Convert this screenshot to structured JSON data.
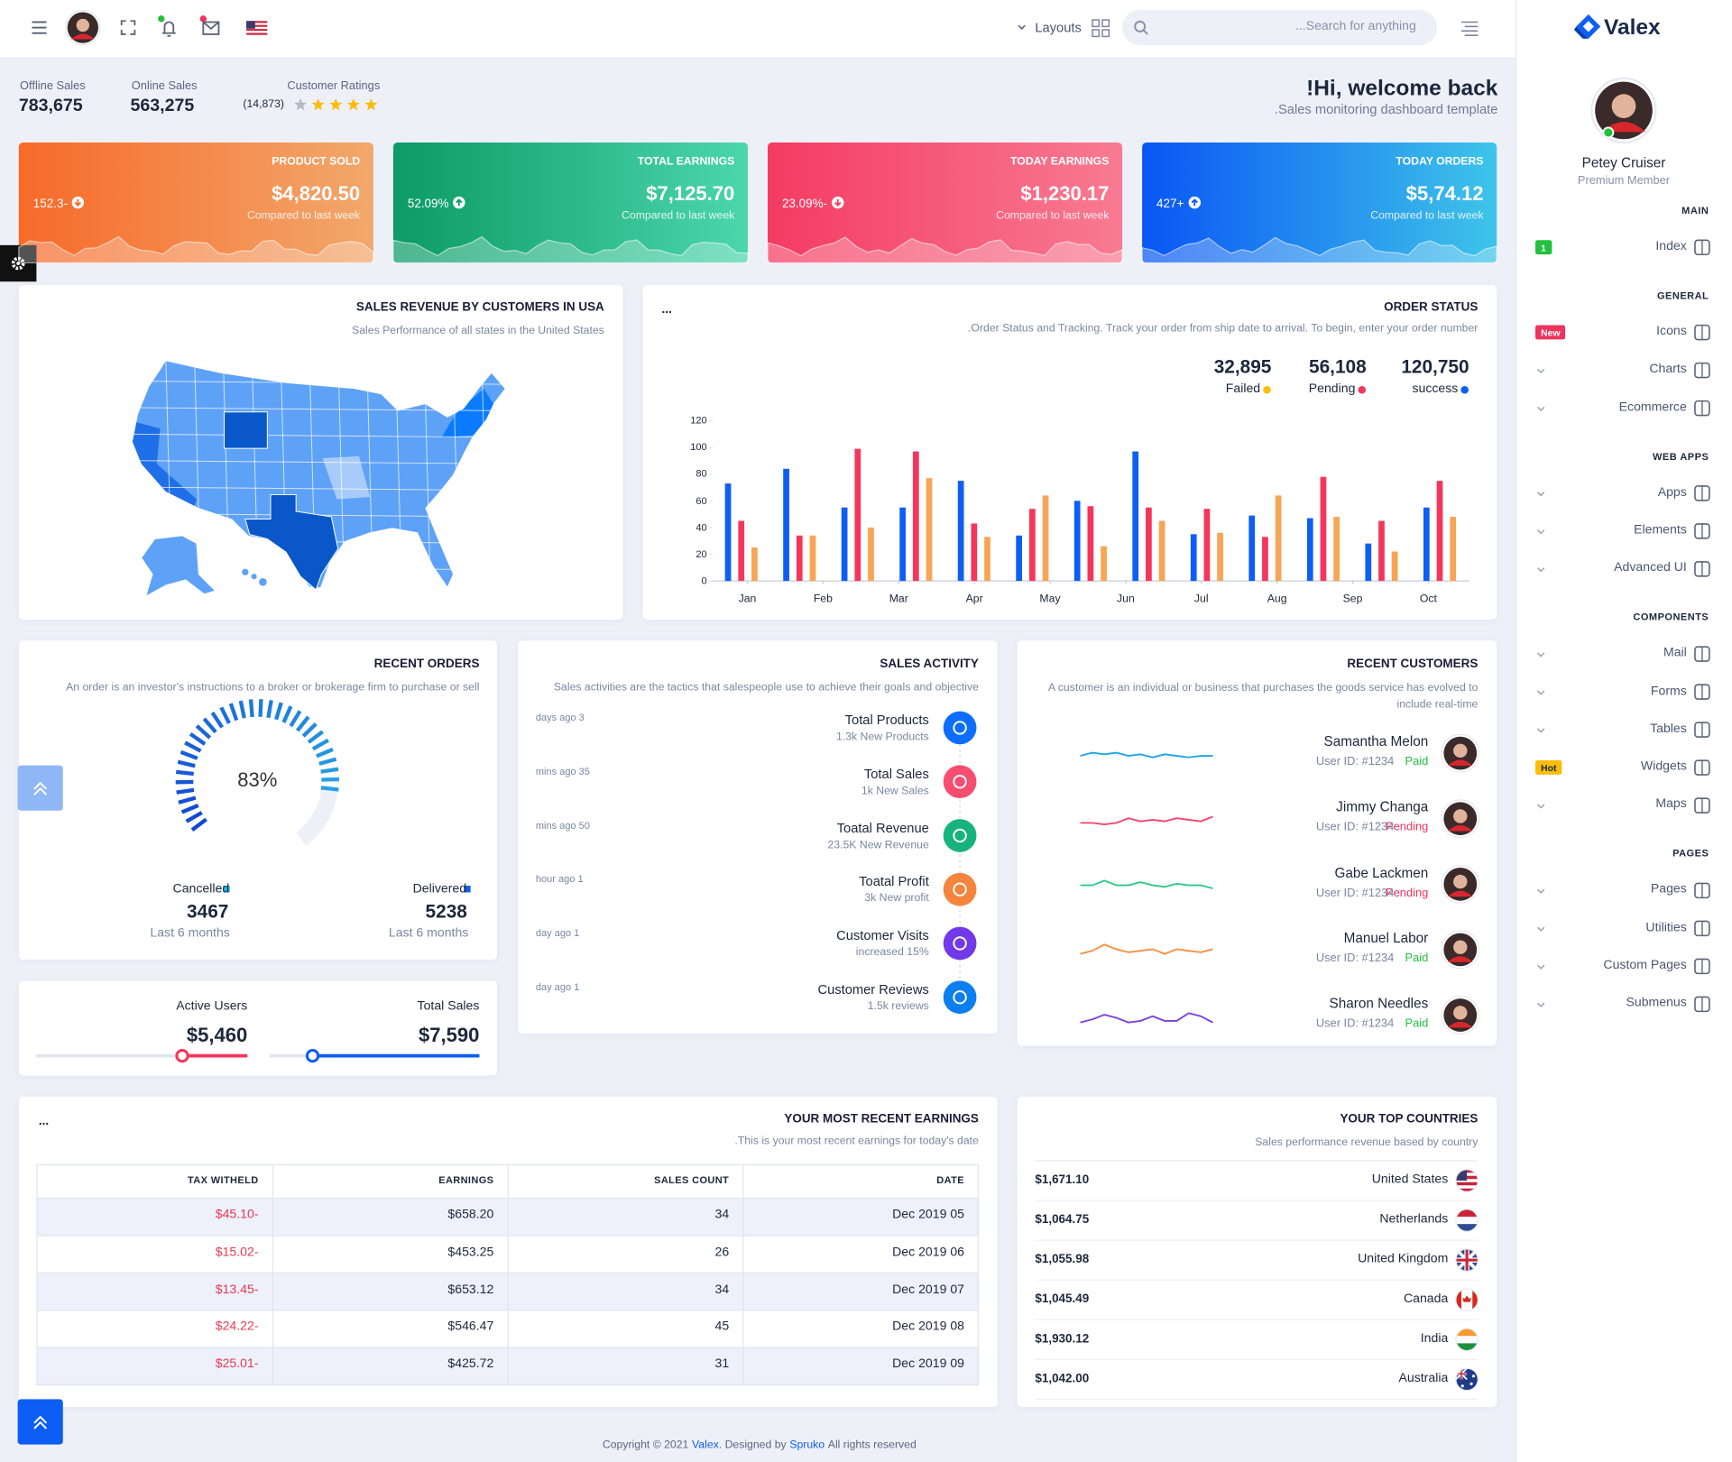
{
  "header": {
    "layouts": "Layouts",
    "search_placeholder": "...Search for anything"
  },
  "stats": [
    {
      "label": "Offline Sales",
      "value": "783,675"
    },
    {
      "label": "Online Sales",
      "value": "563,275"
    }
  ],
  "ratings": {
    "label": "Customer Ratings",
    "count": "(14,873)",
    "stars": 4,
    "max_stars": 5
  },
  "welcome": {
    "title": "!Hi, welcome back",
    "subtitle": ".Sales monitoring dashboard template"
  },
  "cards": [
    {
      "title": "PRODUCT SOLD",
      "value": "$4,820.50",
      "note": "Compared to last week",
      "change": "152.3-",
      "trend": "down",
      "colors": [
        "#f76a2a",
        "#f2a86c"
      ]
    },
    {
      "title": "TOTAL EARNINGS",
      "value": "$7,125.70",
      "note": "Compared to last week",
      "change": "52.09%",
      "trend": "up",
      "colors": [
        "#0b9a68",
        "#4cd7aa"
      ]
    },
    {
      "title": "TODAY EARNINGS",
      "value": "$1,230.17",
      "note": "Compared to last week",
      "change": "23.09%-",
      "trend": "down",
      "colors": [
        "#f43b62",
        "#f87b92"
      ]
    },
    {
      "title": "TODAY ORDERS",
      "value": "$5,74.12",
      "note": "Compared to last week",
      "change": "427+",
      "trend": "up",
      "colors": [
        "#0a56f4",
        "#3ec5e9"
      ]
    }
  ],
  "map": {
    "title": "SALES REVENUE BY CUSTOMERS IN USA",
    "subtitle": "Sales Performance of all states in the United States"
  },
  "chart_data": {
    "type": "bar",
    "menu": "...",
    "title": "ORDER STATUS",
    "subtitle": ".Order Status and Tracking. Track your order from ship date to arrival. To begin, enter your order number",
    "x": [
      0,
      1,
      2,
      3,
      4,
      5,
      6,
      7,
      8,
      9,
      10,
      11,
      12
    ],
    "xlim": [
      -0.5,
      12.5
    ],
    "xticks": [
      {
        "value": 0.1,
        "label": "Jan"
      },
      {
        "value": 1.4,
        "label": "Feb"
      },
      {
        "value": 2.7,
        "label": "Mar"
      },
      {
        "value": 4.0,
        "label": "Apr"
      },
      {
        "value": 5.3,
        "label": "May"
      },
      {
        "value": 6.6,
        "label": "Jun"
      },
      {
        "value": 7.9,
        "label": "Jul"
      },
      {
        "value": 9.2,
        "label": "Aug"
      },
      {
        "value": 10.5,
        "label": "Sep"
      },
      {
        "value": 11.8,
        "label": "Oct"
      }
    ],
    "ylim": [
      0,
      120
    ],
    "yticks": [
      0,
      20,
      40,
      60,
      80,
      100,
      120
    ],
    "grid": false,
    "series": [
      {
        "name": "success",
        "total": "120,750",
        "color": "#0d5ef4",
        "dot_color": "#0d5ef4",
        "values": [
          73,
          84,
          55,
          55,
          75,
          34,
          60,
          97,
          35,
          49,
          47,
          28,
          55
        ]
      },
      {
        "name": "Pending",
        "total": "56,108",
        "color": "#f5365c",
        "dot_color": "#f5365c",
        "values": [
          45,
          34,
          99,
          97,
          43,
          54,
          56,
          55,
          54,
          33,
          78,
          45,
          75
        ]
      },
      {
        "name": "Failed",
        "total": "32,895",
        "color": "#f7a556",
        "dot_color": "#fbbc0b",
        "values": [
          25,
          34,
          40,
          77,
          33,
          64,
          26,
          45,
          36,
          64,
          48,
          22,
          48
        ]
      }
    ]
  },
  "recent_orders": {
    "title": "RECENT ORDERS",
    "subtitle": "An order is an investor's instructions to a broker or brokerage firm to purchase or sell",
    "gauge": {
      "value": 83,
      "label": "83%"
    },
    "stats": [
      {
        "label": "Cancelled",
        "value": 3467,
        "note": "Last 6 months",
        "color": "#1fb7f2"
      },
      {
        "label": "Delivered",
        "value": 5238,
        "note": "Last 6 months",
        "color": "#0d5ef4"
      }
    ]
  },
  "users": [
    {
      "label": "Active Users",
      "value": "$5,460",
      "color": "#f5365c"
    },
    {
      "label": "Total Sales",
      "value": "$7,590",
      "color": "#0d5ef4"
    }
  ],
  "activity": {
    "title": "SALES ACTIVITY",
    "subtitle": "Sales activities are the tactics that salespeople use to achieve their goals and objective",
    "items": [
      {
        "time": "days ago 3",
        "title": "Total Products",
        "detail": "1.3k New Products",
        "color": "#0d6efd"
      },
      {
        "time": "mins ago 35",
        "title": "Total Sales",
        "detail": "1k New Sales",
        "color": "#f74d6f"
      },
      {
        "time": "mins ago 50",
        "title": "Toatal Revenue",
        "detail": "23.5K New Revenue",
        "color": "#16b47c"
      },
      {
        "time": "hour ago 1",
        "title": "Toatal Profit",
        "detail": "3k New profit",
        "color": "#f5843d"
      },
      {
        "time": "day ago 1",
        "title": "Customer Visits",
        "detail": "increased 15%",
        "color": "#7139e8"
      },
      {
        "time": "day ago 1",
        "title": "Customer Reviews",
        "detail": "1.5k reviews",
        "color": "#0d7ef0"
      }
    ]
  },
  "customers": {
    "title": "RECENT CUSTOMERS",
    "subtitle": "A customer is an individual or business that purchases the goods service has evolved to include real-time",
    "ylim": [
      0,
      10
    ],
    "items": [
      {
        "name": "Samantha Melon",
        "user_id": "User ID: #1234",
        "status": "Paid",
        "status_color": "#22c03c",
        "color": "#1ca3ea",
        "values": [
          4,
          6,
          5,
          6,
          4,
          5,
          3,
          5,
          4,
          3,
          4,
          4
        ]
      },
      {
        "name": "Jimmy Changa",
        "user_id": "User ID: #1234",
        "status": "Pending",
        "status_color": "#ee335e",
        "color": "#f5436b",
        "values": [
          3,
          3,
          2,
          3,
          6,
          4,
          5,
          4,
          6,
          5,
          4,
          7
        ]
      },
      {
        "name": "Gabe Lackmen",
        "user_id": "User ID: #1234",
        "status": "Pending",
        "status_color": "#ee335e",
        "color": "#2ec98a",
        "values": [
          5,
          5,
          8,
          5,
          5,
          7,
          5,
          4,
          6,
          5,
          5,
          3
        ]
      },
      {
        "name": "Manuel Labor",
        "user_id": "User ID: #1234",
        "status": "Paid",
        "status_color": "#22c03c",
        "color": "#fb8d3e",
        "values": [
          3,
          5,
          9,
          6,
          4,
          5,
          6,
          3,
          6,
          5,
          4,
          6
        ]
      },
      {
        "name": "Sharon Needles",
        "user_id": "User ID: #1234",
        "status": "Paid",
        "status_color": "#22c03c",
        "color": "#7c3fe0",
        "values": [
          1,
          3,
          6,
          4,
          1,
          2,
          5,
          2,
          2,
          7,
          5,
          1
        ]
      }
    ]
  },
  "earnings": {
    "menu": "...",
    "title": "YOUR MOST RECENT EARNINGS",
    "subtitle": ".This is your most recent earnings for today's date",
    "columns": [
      "TAX WITHELD",
      "EARNINGS",
      "SALES COUNT",
      "DATE"
    ],
    "rows": [
      [
        "$45.10-",
        "$658.20",
        34,
        "Dec 2019 05"
      ],
      [
        "$15.02-",
        "$453.25",
        26,
        "Dec 2019 06"
      ],
      [
        "$13.45-",
        "$653.12",
        34,
        "Dec 2019 07"
      ],
      [
        "$24.22-",
        "$546.47",
        45,
        "Dec 2019 08"
      ],
      [
        "$25.01-",
        "$425.72",
        31,
        "Dec 2019 09"
      ]
    ]
  },
  "countries": {
    "title": "YOUR TOP COUNTRIES",
    "subtitle": "Sales performance revenue based by country",
    "rows": [
      {
        "value": "$1,671.10",
        "name": "United States"
      },
      {
        "value": "$1,064.75",
        "name": "Netherlands"
      },
      {
        "value": "$1,055.98",
        "name": "United Kingdom"
      },
      {
        "value": "$1,045.49",
        "name": "Canada"
      },
      {
        "value": "$1,930.12",
        "name": "India"
      },
      {
        "value": "$1,042.00",
        "name": "Australia"
      }
    ]
  },
  "sidebar": {
    "brand": "Valex",
    "user": {
      "name": "Petey Cruiser",
      "role": "Premium Member"
    },
    "sections": [
      {
        "title": "MAIN",
        "items": [
          {
            "label": "Index",
            "badge": "1",
            "badge_color": "#22c03c"
          }
        ]
      },
      {
        "title": "GENERAL",
        "items": [
          {
            "label": "Icons",
            "badge": "New",
            "badge_color": "#ee335e"
          },
          {
            "label": "Charts"
          },
          {
            "label": "Ecommerce"
          }
        ]
      },
      {
        "title": "WEB APPS",
        "items": [
          {
            "label": "Apps"
          },
          {
            "label": "Elements"
          },
          {
            "label": "Advanced UI"
          }
        ]
      },
      {
        "title": "COMPONENTS",
        "items": [
          {
            "label": "Mail"
          },
          {
            "label": "Forms"
          },
          {
            "label": "Tables"
          },
          {
            "label": "Widgets",
            "badge": "Hot",
            "badge_color": "#fbbc0b"
          },
          {
            "label": "Maps"
          }
        ]
      },
      {
        "title": "PAGES",
        "items": [
          {
            "label": "Pages"
          },
          {
            "label": "Utilities"
          },
          {
            "label": "Custom Pages"
          },
          {
            "label": "Submenus"
          }
        ]
      }
    ]
  },
  "footer": {
    "parts": [
      "Copyright © 2021",
      "Valex",
      ". Designed by",
      "Spruko",
      "All rights reserved"
    ]
  }
}
